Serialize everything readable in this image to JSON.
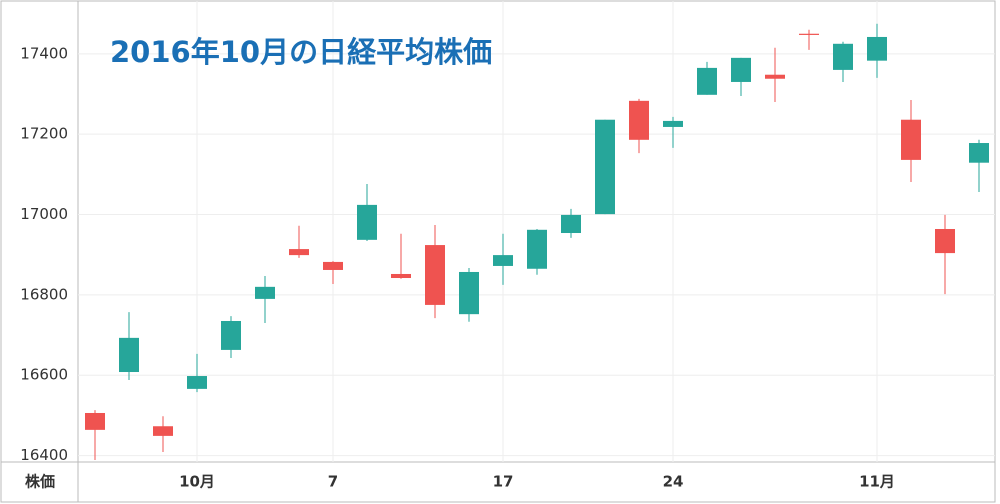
{
  "chart_data": {
    "type": "candlestick",
    "title": "2016年10月の日経平均株価",
    "y_label": "株価",
    "categories": [
      null,
      null,
      null,
      "10月",
      null,
      null,
      null,
      "7",
      null,
      null,
      null,
      null,
      "17",
      null,
      null,
      null,
      null,
      "24",
      null,
      null,
      null,
      null,
      null,
      "11月",
      null,
      null,
      null
    ],
    "up_color": "#26a69a",
    "down_color": "#ef5350",
    "open": [
      16506,
      16608,
      16473,
      16566,
      16663,
      16790,
      16914,
      16882,
      16937,
      16852,
      16924,
      16752,
      16872,
      16865,
      16954,
      17001,
      17283,
      17218,
      17298,
      17330,
      17348,
      17450,
      17360,
      17383,
      17236,
      16964,
      17129
    ],
    "high": [
      16513,
      16757,
      16498,
      16653,
      16747,
      16847,
      16972,
      16884,
      17076,
      16952,
      16974,
      16867,
      16952,
      16964,
      17014,
      17236,
      17288,
      17243,
      17380,
      17390,
      17415,
      17460,
      17430,
      17475,
      17285,
      16999,
      17186
    ],
    "low": [
      16389,
      16588,
      16409,
      16558,
      16643,
      16730,
      16892,
      16827,
      16934,
      16840,
      16742,
      16733,
      16825,
      16850,
      16942,
      17001,
      17153,
      17166,
      17298,
      17295,
      17280,
      17410,
      17330,
      17340,
      17081,
      16802,
      17056
    ],
    "close": [
      16464,
      16693,
      16449,
      16598,
      16735,
      16820,
      16899,
      16862,
      17024,
      16842,
      16775,
      16857,
      16899,
      16962,
      16999,
      17236,
      17186,
      17233,
      17365,
      17390,
      17338,
      17447,
      17425,
      17442,
      17136,
      16904,
      17178
    ],
    "ylim": [
      16384,
      17534
    ],
    "yticks": [
      16400,
      16600,
      16800,
      17000,
      17200,
      17400
    ],
    "grid": true
  }
}
